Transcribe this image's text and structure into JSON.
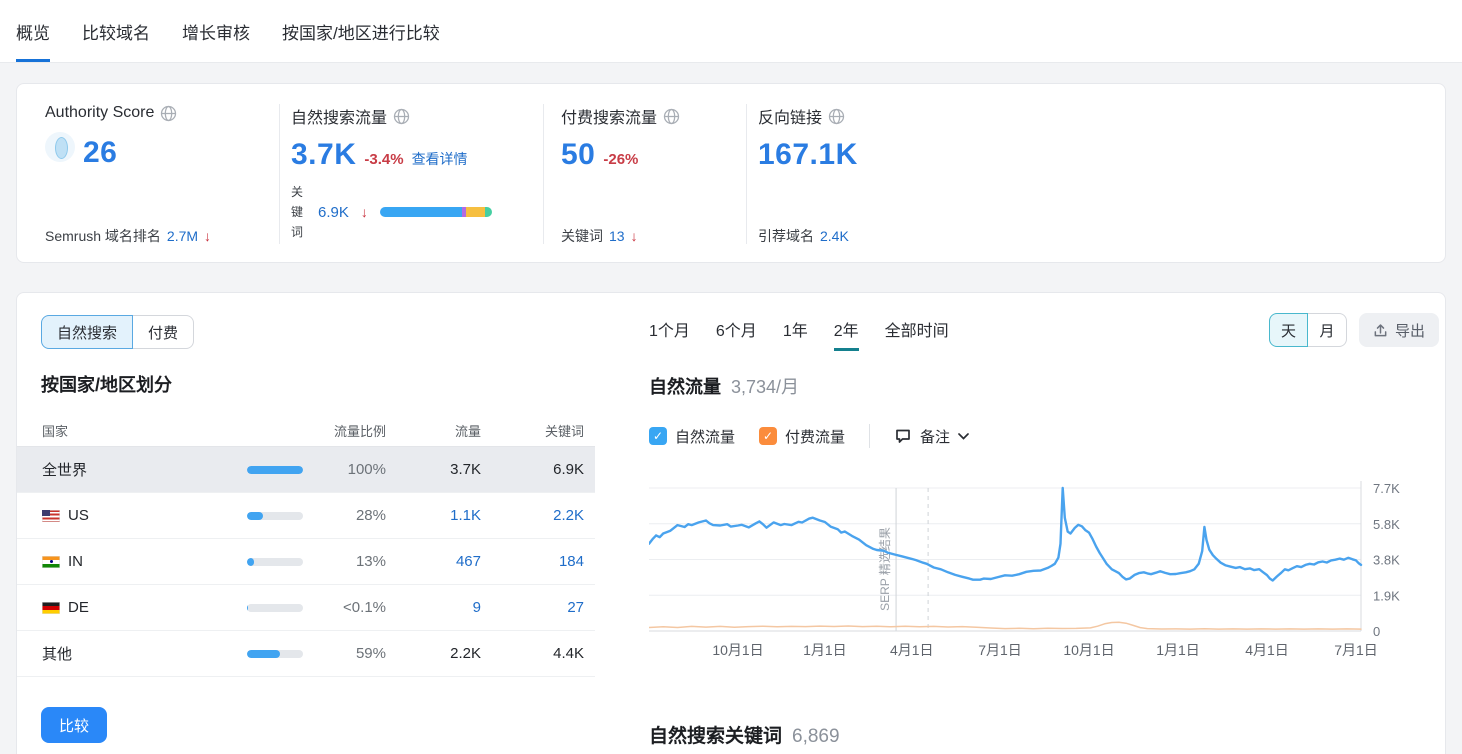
{
  "tabs": {
    "items": [
      {
        "label": "概览",
        "active": true
      },
      {
        "label": "比较域名",
        "active": false
      },
      {
        "label": "增长审核",
        "active": false
      },
      {
        "label": "按国家/地区进行比较",
        "active": false
      }
    ]
  },
  "metrics": {
    "authority": {
      "title": "Authority Score",
      "value": "26",
      "footer_label": "Semrush 域名排名",
      "footer_value": "2.7M",
      "footer_arrow": "↓"
    },
    "organic": {
      "title": "自然搜索流量",
      "value": "3.7K",
      "delta": "-3.4%",
      "link": "查看详情",
      "kw_label": "关键词",
      "kw_value": "6.9K",
      "kw_arrow": "↓",
      "bar": [
        {
          "color": "#38a6f3",
          "pct": 73
        },
        {
          "color": "#b36ae2",
          "pct": 4
        },
        {
          "color": "#f6bf40",
          "pct": 17
        },
        {
          "color": "#45cfa2",
          "pct": 6
        }
      ]
    },
    "paid": {
      "title": "付费搜索流量",
      "value": "50",
      "delta": "-26%",
      "footer_label": "关键词",
      "footer_value": "13",
      "footer_arrow": "↓"
    },
    "backlinks": {
      "title": "反向链接",
      "value": "167.1K",
      "footer_label": "引荐域名",
      "footer_value": "2.4K"
    }
  },
  "left": {
    "toggle": [
      {
        "label": "自然搜索",
        "active": true
      },
      {
        "label": "付费",
        "active": false
      }
    ],
    "heading": "按国家/地区划分",
    "table": {
      "headers": [
        "国家",
        "流量比例",
        "流量",
        "关键词"
      ],
      "rows": [
        {
          "country": "全世界",
          "flag": "",
          "share": "100%",
          "share_pct": 100,
          "traffic": "3.7K",
          "keywords": "6.9K",
          "selected": true,
          "link": false
        },
        {
          "country": "US",
          "flag": "us",
          "share": "28%",
          "share_pct": 28,
          "traffic": "1.1K",
          "keywords": "2.2K",
          "selected": false,
          "link": true
        },
        {
          "country": "IN",
          "flag": "in",
          "share": "13%",
          "share_pct": 13,
          "traffic": "467",
          "keywords": "184",
          "selected": false,
          "link": true
        },
        {
          "country": "DE",
          "flag": "de",
          "share": "<0.1%",
          "share_pct": 2,
          "traffic": "9",
          "keywords": "27",
          "selected": false,
          "link": true
        },
        {
          "country": "其他",
          "flag": "",
          "share": "59%",
          "share_pct": 59,
          "traffic": "2.2K",
          "keywords": "4.4K",
          "selected": false,
          "link": false
        }
      ]
    },
    "compare_button": "比较"
  },
  "right": {
    "ranges": [
      {
        "label": "1个月",
        "active": false
      },
      {
        "label": "6个月",
        "active": false
      },
      {
        "label": "1年",
        "active": false
      },
      {
        "label": "2年",
        "active": true
      },
      {
        "label": "全部时间",
        "active": false
      }
    ],
    "granularity": [
      {
        "label": "天",
        "active": true
      },
      {
        "label": "月",
        "active": false
      }
    ],
    "export_label": "导出",
    "chart_title": "自然流量",
    "chart_subtitle": "3,734/月",
    "legend": [
      {
        "label": "自然流量",
        "color": "#38a6f3"
      },
      {
        "label": "付费流量",
        "color": "#fb8c3c"
      }
    ],
    "notes_label": "备注",
    "keywords_heading": "自然搜索关键词",
    "keywords_count": "6,869"
  },
  "chart_data": {
    "type": "line",
    "title": "自然流量",
    "subtitle": "3,734/月",
    "ylim": [
      0,
      7700
    ],
    "grid": true,
    "yticks": [
      {
        "v": 7700,
        "label": "7.7K"
      },
      {
        "v": 5775,
        "label": "5.8K"
      },
      {
        "v": 3850,
        "label": "3.8K"
      },
      {
        "v": 1925,
        "label": "1.9K"
      },
      {
        "v": 0,
        "label": "0"
      }
    ],
    "xticks": [
      {
        "f": 0.125,
        "label": "10月1日"
      },
      {
        "f": 0.247,
        "label": "1月1日"
      },
      {
        "f": 0.369,
        "label": "4月1日"
      },
      {
        "f": 0.493,
        "label": "7月1日"
      },
      {
        "f": 0.618,
        "label": "10月1日"
      },
      {
        "f": 0.743,
        "label": "1月1日"
      },
      {
        "f": 0.868,
        "label": "4月1日"
      },
      {
        "f": 0.993,
        "label": "7月1日"
      }
    ],
    "annotation": {
      "f": 0.347,
      "dashed_f": 0.392,
      "label": "SERP 精选结果"
    },
    "series": [
      {
        "name": "自然流量",
        "color": "#4aa3ee",
        "width": 2.4,
        "points": [
          [
            0,
            4700
          ],
          [
            0.005,
            4950
          ],
          [
            0.01,
            5150
          ],
          [
            0.015,
            5050
          ],
          [
            0.02,
            5250
          ],
          [
            0.03,
            5400
          ],
          [
            0.035,
            5550
          ],
          [
            0.04,
            5700
          ],
          [
            0.05,
            5600
          ],
          [
            0.055,
            5750
          ],
          [
            0.06,
            5700
          ],
          [
            0.07,
            5850
          ],
          [
            0.08,
            5950
          ],
          [
            0.085,
            5800
          ],
          [
            0.09,
            5700
          ],
          [
            0.1,
            5680
          ],
          [
            0.11,
            5750
          ],
          [
            0.115,
            5620
          ],
          [
            0.125,
            5680
          ],
          [
            0.13,
            5720
          ],
          [
            0.14,
            5580
          ],
          [
            0.15,
            5800
          ],
          [
            0.155,
            5900
          ],
          [
            0.16,
            5750
          ],
          [
            0.165,
            5560
          ],
          [
            0.175,
            5850
          ],
          [
            0.185,
            5700
          ],
          [
            0.19,
            5760
          ],
          [
            0.2,
            5700
          ],
          [
            0.21,
            5880
          ],
          [
            0.215,
            5840
          ],
          [
            0.225,
            6050
          ],
          [
            0.23,
            6100
          ],
          [
            0.24,
            5950
          ],
          [
            0.247,
            5870
          ],
          [
            0.255,
            5620
          ],
          [
            0.265,
            5480
          ],
          [
            0.27,
            5300
          ],
          [
            0.275,
            5360
          ],
          [
            0.285,
            5120
          ],
          [
            0.295,
            4920
          ],
          [
            0.305,
            4620
          ],
          [
            0.315,
            4420
          ],
          [
            0.32,
            4360
          ],
          [
            0.33,
            4320
          ],
          [
            0.335,
            4220
          ],
          [
            0.345,
            4120
          ],
          [
            0.355,
            4020
          ],
          [
            0.365,
            3920
          ],
          [
            0.369,
            3880
          ],
          [
            0.375,
            3820
          ],
          [
            0.385,
            3680
          ],
          [
            0.39,
            3620
          ],
          [
            0.4,
            3420
          ],
          [
            0.41,
            3320
          ],
          [
            0.42,
            3160
          ],
          [
            0.43,
            3020
          ],
          [
            0.44,
            2920
          ],
          [
            0.45,
            2820
          ],
          [
            0.455,
            2760
          ],
          [
            0.465,
            2760
          ],
          [
            0.47,
            2820
          ],
          [
            0.48,
            2800
          ],
          [
            0.49,
            2900
          ],
          [
            0.5,
            3000
          ],
          [
            0.51,
            2980
          ],
          [
            0.52,
            3060
          ],
          [
            0.53,
            3190
          ],
          [
            0.54,
            3240
          ],
          [
            0.55,
            3260
          ],
          [
            0.56,
            3400
          ],
          [
            0.565,
            3500
          ],
          [
            0.57,
            3620
          ],
          [
            0.575,
            3950
          ],
          [
            0.578,
            4700
          ],
          [
            0.581,
            7700
          ],
          [
            0.584,
            6100
          ],
          [
            0.588,
            5350
          ],
          [
            0.592,
            5250
          ],
          [
            0.598,
            5550
          ],
          [
            0.603,
            5720
          ],
          [
            0.608,
            5640
          ],
          [
            0.613,
            5420
          ],
          [
            0.618,
            5300
          ],
          [
            0.623,
            4950
          ],
          [
            0.628,
            4550
          ],
          [
            0.633,
            4200
          ],
          [
            0.638,
            3900
          ],
          [
            0.643,
            3600
          ],
          [
            0.65,
            3320
          ],
          [
            0.655,
            3220
          ],
          [
            0.66,
            3120
          ],
          [
            0.665,
            2920
          ],
          [
            0.67,
            2780
          ],
          [
            0.675,
            2820
          ],
          [
            0.682,
            3020
          ],
          [
            0.688,
            3120
          ],
          [
            0.695,
            3160
          ],
          [
            0.7,
            3100
          ],
          [
            0.705,
            3060
          ],
          [
            0.712,
            3140
          ],
          [
            0.718,
            3220
          ],
          [
            0.725,
            3130
          ],
          [
            0.732,
            3060
          ],
          [
            0.74,
            3070
          ],
          [
            0.747,
            3120
          ],
          [
            0.754,
            3160
          ],
          [
            0.76,
            3220
          ],
          [
            0.766,
            3320
          ],
          [
            0.772,
            3620
          ],
          [
            0.777,
            4300
          ],
          [
            0.78,
            5600
          ],
          [
            0.783,
            4900
          ],
          [
            0.787,
            4380
          ],
          [
            0.792,
            4080
          ],
          [
            0.797,
            3880
          ],
          [
            0.803,
            3680
          ],
          [
            0.81,
            3530
          ],
          [
            0.817,
            3460
          ],
          [
            0.824,
            3400
          ],
          [
            0.83,
            3440
          ],
          [
            0.837,
            3330
          ],
          [
            0.844,
            3370
          ],
          [
            0.85,
            3280
          ],
          [
            0.857,
            3330
          ],
          [
            0.862,
            3180
          ],
          [
            0.868,
            3010
          ],
          [
            0.872,
            2820
          ],
          [
            0.876,
            2720
          ],
          [
            0.882,
            2940
          ],
          [
            0.888,
            3140
          ],
          [
            0.893,
            3320
          ],
          [
            0.898,
            3270
          ],
          [
            0.904,
            3380
          ],
          [
            0.91,
            3490
          ],
          [
            0.916,
            3440
          ],
          [
            0.922,
            3560
          ],
          [
            0.928,
            3620
          ],
          [
            0.934,
            3580
          ],
          [
            0.94,
            3700
          ],
          [
            0.946,
            3740
          ],
          [
            0.952,
            3690
          ],
          [
            0.958,
            3800
          ],
          [
            0.964,
            3840
          ],
          [
            0.97,
            3900
          ],
          [
            0.976,
            3840
          ],
          [
            0.982,
            3940
          ],
          [
            0.988,
            3860
          ],
          [
            0.993,
            3800
          ],
          [
            0.997,
            3640
          ],
          [
            1,
            3560
          ]
        ]
      },
      {
        "name": "付费流量",
        "color": "#f4c7a2",
        "width": 1.5,
        "points": [
          [
            0,
            190
          ],
          [
            0.02,
            230
          ],
          [
            0.04,
            190
          ],
          [
            0.06,
            250
          ],
          [
            0.08,
            210
          ],
          [
            0.1,
            245
          ],
          [
            0.12,
            205
          ],
          [
            0.14,
            235
          ],
          [
            0.16,
            260
          ],
          [
            0.18,
            225
          ],
          [
            0.2,
            250
          ],
          [
            0.22,
            235
          ],
          [
            0.24,
            262
          ],
          [
            0.26,
            240
          ],
          [
            0.28,
            268
          ],
          [
            0.3,
            235
          ],
          [
            0.32,
            255
          ],
          [
            0.34,
            225
          ],
          [
            0.36,
            258
          ],
          [
            0.38,
            232
          ],
          [
            0.4,
            248
          ],
          [
            0.42,
            215
          ],
          [
            0.44,
            238
          ],
          [
            0.46,
            205
          ],
          [
            0.48,
            162
          ],
          [
            0.5,
            128
          ],
          [
            0.52,
            145
          ],
          [
            0.54,
            125
          ],
          [
            0.56,
            150
          ],
          [
            0.58,
            132
          ],
          [
            0.6,
            142
          ],
          [
            0.62,
            165
          ],
          [
            0.63,
            260
          ],
          [
            0.64,
            390
          ],
          [
            0.65,
            460
          ],
          [
            0.66,
            470
          ],
          [
            0.67,
            420
          ],
          [
            0.68,
            300
          ],
          [
            0.69,
            185
          ],
          [
            0.7,
            128
          ],
          [
            0.72,
            108
          ],
          [
            0.74,
            115
          ],
          [
            0.76,
            105
          ],
          [
            0.78,
            122
          ],
          [
            0.8,
            105
          ],
          [
            0.82,
            112
          ],
          [
            0.84,
            104
          ],
          [
            0.86,
            112
          ],
          [
            0.88,
            102
          ],
          [
            0.9,
            112
          ],
          [
            0.92,
            104
          ],
          [
            0.94,
            112
          ],
          [
            0.96,
            104
          ],
          [
            0.98,
            112
          ],
          [
            1,
            104
          ]
        ]
      }
    ]
  }
}
